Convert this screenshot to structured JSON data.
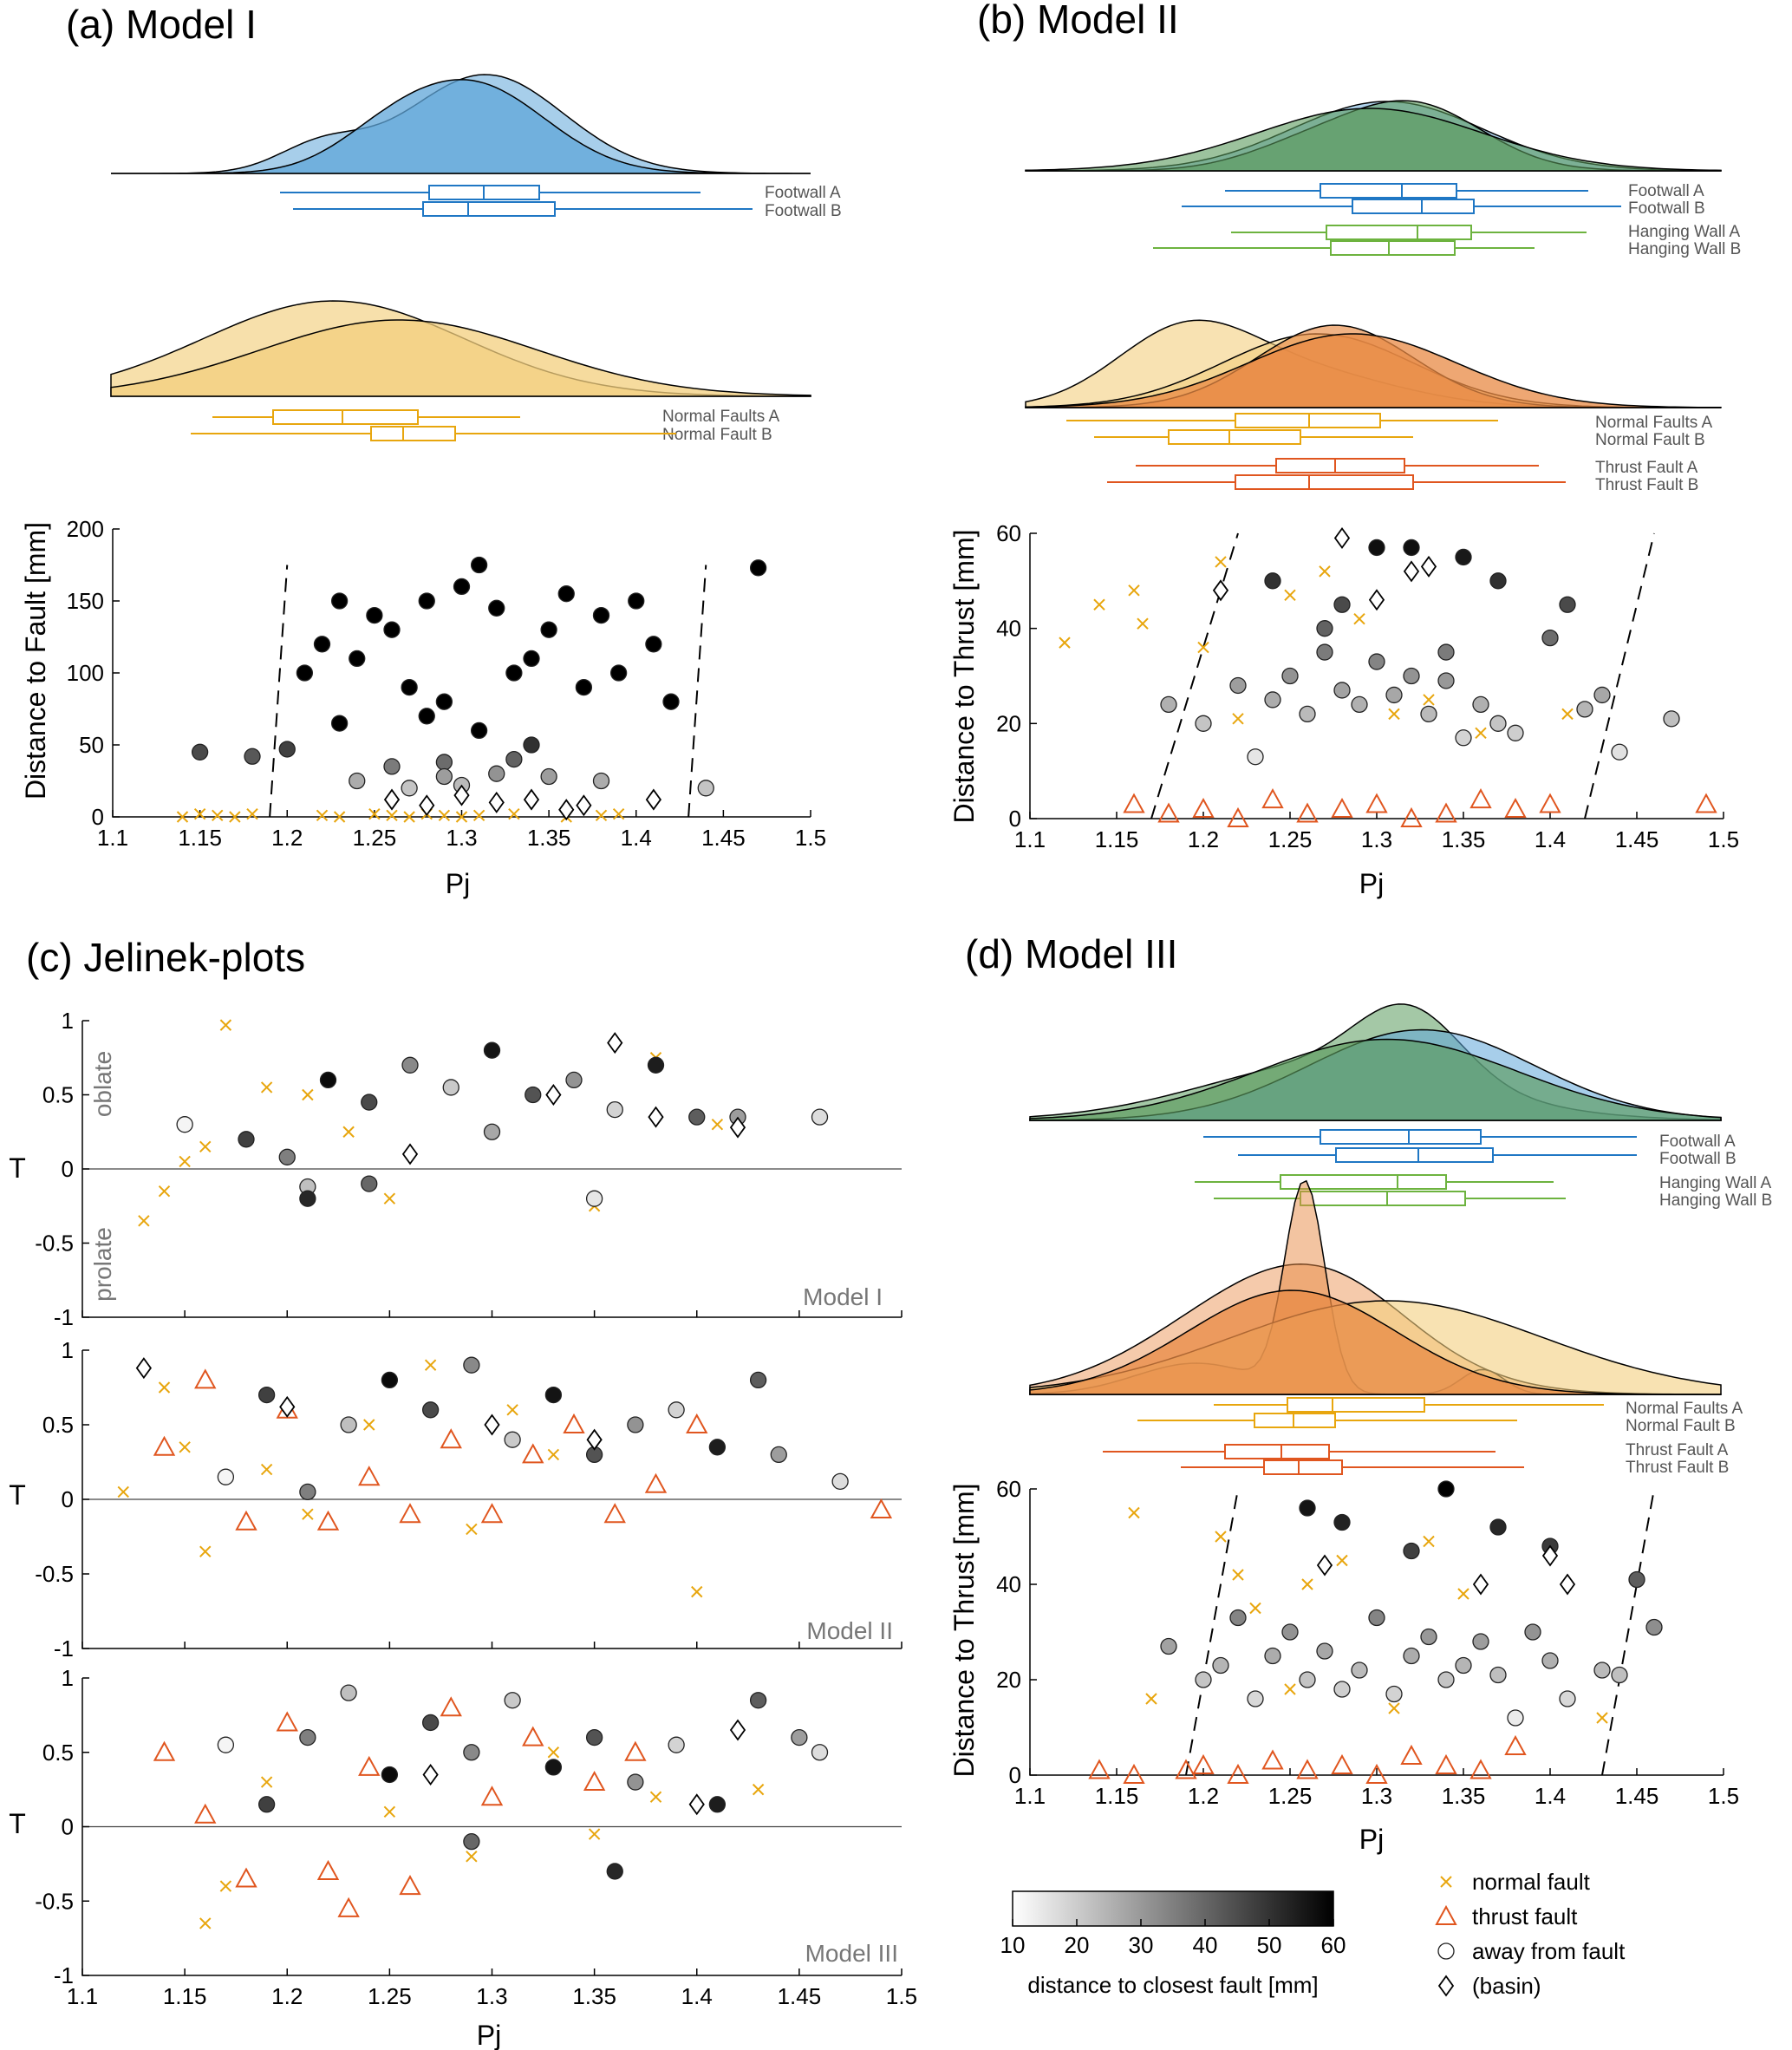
{
  "colors": {
    "footwall": "#1f77c4",
    "footwall_fill": "#5fa5d8",
    "hanging": "#6db33f",
    "hanging_fill": "#5a9a5c",
    "normal": "#e8a60e",
    "normal_fill": "#f3cf7e",
    "thrust": "#e0561f",
    "thrust_fill": "#e88a44"
  },
  "icons": {
    "normal": "cross-marker-icon",
    "thrust": "triangle-marker-icon",
    "away": "circle-marker-icon",
    "basin": "diamond-marker-icon"
  },
  "panels": {
    "a": {
      "title": "(a) Model I",
      "box_labels": [
        "Footwall A",
        "Footwall B",
        "Normal Faults A",
        "Normal Fault B"
      ],
      "ylabel": "Distance to Fault [mm]",
      "xlabel": "Pj",
      "yticks": [
        "0",
        "50",
        "100",
        "150",
        "200"
      ]
    },
    "b": {
      "title": "(b) Model II",
      "box_labels": [
        "Footwall A",
        "Footwall B",
        "Hanging Wall A",
        "Hanging Wall B",
        "Normal Faults A",
        "Normal Fault B",
        "Thrust Fault A",
        "Thrust Fault B"
      ],
      "ylabel": "Distance to Thrust [mm]",
      "xlabel": "Pj",
      "yticks": [
        "0",
        "20",
        "40",
        "60"
      ]
    },
    "c": {
      "title": "(c) Jelinek-plots",
      "ylabel": "T",
      "xlabel": "Pj",
      "oblate": "oblate",
      "prolate": "prolate",
      "model_labels": [
        "Model I",
        "Model II",
        "Model III"
      ],
      "yticks": [
        "1",
        "0.5",
        "0",
        "-0.5",
        "-1"
      ]
    },
    "d": {
      "title": "(d) Model III",
      "box_labels": [
        "Footwall A",
        "Footwall B",
        "Hanging Wall A",
        "Hanging Wall B",
        "Normal Faults A",
        "Normal Fault B",
        "Thrust Fault A",
        "Thrust Fault B"
      ],
      "ylabel": "Distance to Thrust [mm]",
      "xlabel": "Pj",
      "yticks": [
        "0",
        "20",
        "40",
        "60"
      ]
    }
  },
  "xticks_main": [
    "1.1",
    "1.15",
    "1.2",
    "1.25",
    "1.3",
    "1.35",
    "1.4",
    "1.45",
    "1.5"
  ],
  "legend": {
    "colorbar_ticks": [
      "10",
      "20",
      "30",
      "40",
      "50",
      "60"
    ],
    "colorbar_label": "distance to closest fault [mm]",
    "items": [
      "normal fault",
      "thrust fault",
      "away from fault",
      "(basin)"
    ]
  },
  "chart_data": [
    {
      "type": "scatter",
      "panel": "a",
      "title": "Model I",
      "xlabel": "Pj",
      "ylabel": "Distance to Fault [mm]",
      "xlim": [
        1.1,
        1.5
      ],
      "ylim": [
        0,
        200
      ],
      "series": [
        {
          "name": "normal fault",
          "x": [
            1.14,
            1.15,
            1.16,
            1.17,
            1.18,
            1.22,
            1.23,
            1.25,
            1.26,
            1.27,
            1.28,
            1.29,
            1.3,
            1.31,
            1.33,
            1.36,
            1.38,
            1.39
          ],
          "y": [
            0,
            2,
            1,
            0,
            2,
            1,
            0,
            2,
            1,
            0,
            2,
            1,
            0,
            1,
            2,
            0,
            1,
            2
          ]
        },
        {
          "name": "away from fault",
          "x": [
            1.15,
            1.18,
            1.2,
            1.21,
            1.22,
            1.23,
            1.24,
            1.25,
            1.26,
            1.27,
            1.28,
            1.29,
            1.3,
            1.31,
            1.32,
            1.33,
            1.34,
            1.35,
            1.36,
            1.37,
            1.38,
            1.39,
            1.4,
            1.41,
            1.42,
            1.47,
            1.23,
            1.28,
            1.31,
            1.34,
            1.26,
            1.29,
            1.32,
            1.35,
            1.38,
            1.3,
            1.33,
            1.24,
            1.27,
            1.29,
            1.44
          ],
          "y": [
            45,
            42,
            47,
            100,
            120,
            150,
            110,
            140,
            130,
            90,
            150,
            80,
            160,
            175,
            145,
            100,
            110,
            130,
            155,
            90,
            140,
            100,
            150,
            120,
            80,
            173,
            65,
            70,
            60,
            50,
            35,
            38,
            30,
            28,
            25,
            22,
            40,
            25,
            20,
            28,
            20
          ]
        },
        {
          "name": "(basin)",
          "x": [
            1.26,
            1.28,
            1.3,
            1.32,
            1.34,
            1.36,
            1.37,
            1.41
          ],
          "y": [
            12,
            8,
            15,
            10,
            12,
            5,
            8,
            12
          ]
        }
      ]
    },
    {
      "type": "scatter",
      "panel": "b",
      "title": "Model II",
      "xlabel": "Pj",
      "ylabel": "Distance to Thrust [mm]",
      "xlim": [
        1.1,
        1.5
      ],
      "ylim": [
        0,
        60
      ],
      "series": [
        {
          "name": "normal fault",
          "x": [
            1.12,
            1.14,
            1.16,
            1.165,
            1.2,
            1.21,
            1.22,
            1.25,
            1.27,
            1.29,
            1.31,
            1.33,
            1.36,
            1.41
          ],
          "y": [
            37,
            45,
            48,
            41,
            36,
            54,
            21,
            47,
            52,
            42,
            22,
            25,
            18,
            22
          ]
        },
        {
          "name": "thrust fault",
          "x": [
            1.16,
            1.18,
            1.2,
            1.22,
            1.24,
            1.26,
            1.28,
            1.3,
            1.32,
            1.34,
            1.36,
            1.38,
            1.4,
            1.49
          ],
          "y": [
            3,
            1,
            2,
            0,
            4,
            1,
            2,
            3,
            0,
            1,
            4,
            2,
            3,
            3
          ]
        },
        {
          "name": "away from fault",
          "x": [
            1.18,
            1.2,
            1.22,
            1.23,
            1.24,
            1.25,
            1.26,
            1.27,
            1.28,
            1.29,
            1.3,
            1.31,
            1.32,
            1.33,
            1.34,
            1.35,
            1.36,
            1.37,
            1.38,
            1.4,
            1.42,
            1.43,
            1.44,
            1.47,
            1.24,
            1.28,
            1.3,
            1.32,
            1.35,
            1.37,
            1.41,
            1.27,
            1.34
          ],
          "y": [
            24,
            20,
            28,
            13,
            25,
            30,
            22,
            35,
            27,
            24,
            33,
            26,
            30,
            22,
            29,
            17,
            24,
            20,
            18,
            38,
            23,
            26,
            14,
            21,
            50,
            45,
            57,
            57,
            55,
            50,
            45,
            40,
            35
          ]
        },
        {
          "name": "(basin)",
          "x": [
            1.21,
            1.28,
            1.3,
            1.32,
            1.33
          ],
          "y": [
            48,
            59,
            46,
            52,
            53
          ]
        }
      ]
    },
    {
      "type": "scatter",
      "panel": "c1",
      "title": "Model I",
      "xlabel": "Pj",
      "ylabel": "T",
      "xlim": [
        1.1,
        1.5
      ],
      "ylim": [
        -1,
        1
      ],
      "series": [
        {
          "name": "normal fault",
          "x": [
            1.13,
            1.14,
            1.15,
            1.16,
            1.17,
            1.19,
            1.21,
            1.23,
            1.25,
            1.35,
            1.38,
            1.41
          ],
          "y": [
            -0.35,
            -0.15,
            0.05,
            0.15,
            0.97,
            0.55,
            0.5,
            0.25,
            -0.2,
            -0.25,
            0.75,
            0.3
          ]
        },
        {
          "name": "away from fault",
          "x": [
            1.15,
            1.18,
            1.2,
            1.21,
            1.22,
            1.24,
            1.26,
            1.28,
            1.3,
            1.32,
            1.34,
            1.36,
            1.38,
            1.4,
            1.42,
            1.46,
            1.21,
            1.24,
            1.3,
            1.35
          ],
          "y": [
            0.3,
            0.2,
            0.08,
            -0.12,
            0.6,
            0.45,
            0.7,
            0.55,
            0.8,
            0.5,
            0.6,
            0.4,
            0.7,
            0.35,
            0.35,
            0.35,
            -0.2,
            -0.1,
            0.25,
            -0.2
          ]
        },
        {
          "name": "(basin)",
          "x": [
            1.26,
            1.33,
            1.36,
            1.38,
            1.42
          ],
          "y": [
            0.1,
            0.5,
            0.85,
            0.35,
            0.28
          ]
        }
      ]
    },
    {
      "type": "scatter",
      "panel": "c2",
      "title": "Model II",
      "xlabel": "Pj",
      "ylabel": "T",
      "xlim": [
        1.1,
        1.5
      ],
      "ylim": [
        -1,
        1
      ],
      "series": [
        {
          "name": "normal fault",
          "x": [
            1.12,
            1.14,
            1.15,
            1.16,
            1.19,
            1.21,
            1.24,
            1.27,
            1.29,
            1.31,
            1.33,
            1.4
          ],
          "y": [
            0.05,
            0.75,
            0.35,
            -0.35,
            0.2,
            -0.1,
            0.5,
            0.9,
            -0.2,
            0.6,
            0.3,
            -0.62
          ]
        },
        {
          "name": "thrust fault",
          "x": [
            1.14,
            1.16,
            1.18,
            1.2,
            1.22,
            1.24,
            1.26,
            1.28,
            1.3,
            1.32,
            1.34,
            1.36,
            1.38,
            1.4,
            1.49
          ],
          "y": [
            0.35,
            0.8,
            -0.15,
            0.6,
            -0.15,
            0.15,
            -0.1,
            0.4,
            -0.1,
            0.3,
            0.5,
            -0.1,
            0.1,
            0.5,
            -0.07
          ]
        },
        {
          "name": "away from fault",
          "x": [
            1.17,
            1.19,
            1.21,
            1.23,
            1.25,
            1.27,
            1.29,
            1.31,
            1.33,
            1.35,
            1.37,
            1.39,
            1.41,
            1.43,
            1.44,
            1.47
          ],
          "y": [
            0.15,
            0.7,
            0.05,
            0.5,
            0.8,
            0.6,
            0.9,
            0.4,
            0.7,
            0.3,
            0.5,
            0.6,
            0.35,
            0.8,
            0.3,
            0.12
          ]
        },
        {
          "name": "(basin)",
          "x": [
            1.13,
            1.2,
            1.3,
            1.35
          ],
          "y": [
            0.88,
            0.62,
            0.5,
            0.4
          ]
        }
      ]
    },
    {
      "type": "scatter",
      "panel": "c3",
      "title": "Model III",
      "xlabel": "Pj",
      "ylabel": "T",
      "xlim": [
        1.1,
        1.5
      ],
      "ylim": [
        -1,
        1
      ],
      "series": [
        {
          "name": "normal fault",
          "x": [
            1.16,
            1.17,
            1.19,
            1.21,
            1.25,
            1.29,
            1.33,
            1.35,
            1.38,
            1.43
          ],
          "y": [
            -0.65,
            -0.4,
            0.3,
            0.6,
            0.1,
            -0.2,
            0.5,
            -0.05,
            0.2,
            0.25
          ]
        },
        {
          "name": "thrust fault",
          "x": [
            1.14,
            1.16,
            1.18,
            1.2,
            1.22,
            1.23,
            1.24,
            1.26,
            1.28,
            1.3,
            1.32,
            1.35,
            1.37
          ],
          "y": [
            0.5,
            0.08,
            -0.35,
            0.7,
            -0.3,
            -0.55,
            0.4,
            -0.4,
            0.8,
            0.2,
            0.6,
            0.3,
            0.5
          ]
        },
        {
          "name": "away from fault",
          "x": [
            1.17,
            1.19,
            1.21,
            1.23,
            1.25,
            1.27,
            1.29,
            1.31,
            1.33,
            1.35,
            1.37,
            1.39,
            1.41,
            1.43,
            1.45,
            1.46,
            1.36,
            1.29
          ],
          "y": [
            0.55,
            0.15,
            0.6,
            0.9,
            0.35,
            0.7,
            0.5,
            0.85,
            0.4,
            0.6,
            0.3,
            0.55,
            0.15,
            0.85,
            0.6,
            0.5,
            -0.3,
            -0.1
          ]
        },
        {
          "name": "(basin)",
          "x": [
            1.27,
            1.4,
            1.42
          ],
          "y": [
            0.35,
            0.15,
            0.65
          ]
        }
      ]
    },
    {
      "type": "scatter",
      "panel": "d",
      "title": "Model III",
      "xlabel": "Pj",
      "ylabel": "Distance to Thrust [mm]",
      "xlim": [
        1.1,
        1.5
      ],
      "ylim": [
        0,
        60
      ],
      "series": [
        {
          "name": "normal fault",
          "x": [
            1.16,
            1.17,
            1.21,
            1.22,
            1.23,
            1.25,
            1.26,
            1.28,
            1.31,
            1.33,
            1.35,
            1.43
          ],
          "y": [
            55,
            16,
            50,
            42,
            35,
            18,
            40,
            45,
            14,
            49,
            38,
            12
          ]
        },
        {
          "name": "thrust fault",
          "x": [
            1.14,
            1.16,
            1.19,
            1.2,
            1.22,
            1.24,
            1.26,
            1.28,
            1.3,
            1.32,
            1.34,
            1.36,
            1.38
          ],
          "y": [
            1,
            0,
            1,
            2,
            0,
            3,
            1,
            2,
            0,
            4,
            2,
            1,
            6
          ]
        },
        {
          "name": "away from fault",
          "x": [
            1.18,
            1.2,
            1.21,
            1.22,
            1.23,
            1.24,
            1.25,
            1.26,
            1.27,
            1.28,
            1.29,
            1.3,
            1.31,
            1.32,
            1.33,
            1.34,
            1.35,
            1.36,
            1.37,
            1.38,
            1.39,
            1.4,
            1.41,
            1.43,
            1.44,
            1.46,
            1.26,
            1.28,
            1.32,
            1.34,
            1.37,
            1.4,
            1.45
          ],
          "y": [
            27,
            20,
            23,
            33,
            16,
            25,
            30,
            20,
            26,
            18,
            22,
            33,
            17,
            25,
            29,
            20,
            23,
            28,
            21,
            12,
            30,
            24,
            16,
            22,
            21,
            31,
            56,
            53,
            47,
            60,
            52,
            48,
            41
          ]
        },
        {
          "name": "(basin)",
          "x": [
            1.27,
            1.36,
            1.4,
            1.41
          ],
          "y": [
            44,
            40,
            46,
            40
          ]
        }
      ]
    }
  ]
}
